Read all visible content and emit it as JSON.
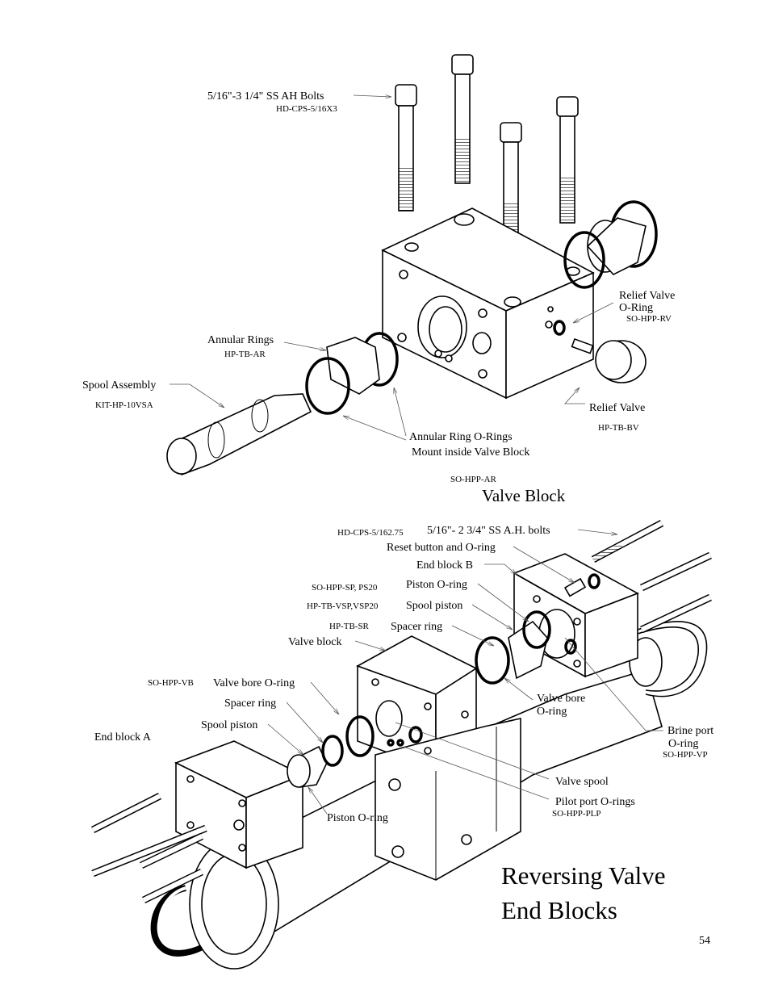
{
  "top_diagram": {
    "bolts_label": "5/16\"-3 1/4\" SS AH Bolts",
    "bolts_part": "HD-CPS-5/16X3",
    "relief_oring_label": [
      "Relief Valve",
      "O-Ring"
    ],
    "relief_oring_part": "SO-HPP-RV",
    "annular_rings_label": "Annular Rings",
    "annular_rings_part": "HP-TB-AR",
    "spool_label": "Spool Assembly",
    "spool_part": "KIT-HP-10VSA",
    "relief_valve_label": "Relief Valve",
    "relief_valve_part": "HP-TB-BV",
    "annular_orings_label": [
      "Annular Ring O-Rings",
      "Mount inside Valve Block"
    ],
    "annular_orings_part": "SO-HPP-AR",
    "caption": "Valve Block"
  },
  "bottom_diagram": {
    "bolts_part": "HD-CPS-5/162.75",
    "bolts_label": "5/16\"- 2 3/4\" SS A.H. bolts",
    "reset_label": "Reset button and O-ring",
    "end_block_b": "End block B",
    "piston_oring_part": "SO-HPP-SP, PS20",
    "piston_oring_label": "Piston O-ring",
    "spool_piston_part": "HP-TB-VSP,VSP20",
    "spool_piston_label": "Spool piston",
    "spacer_ring_part": "HP-TB-SR",
    "spacer_ring_label": "Spacer ring",
    "valve_block_label": "Valve block",
    "valve_bore_part": "SO-HPP-VB",
    "valve_bore_label": "Valve bore O-ring",
    "spacer_ring_label_a": "Spacer ring",
    "spool_piston_label_a": "Spool piston",
    "end_block_a": "End block A",
    "valve_bore_label_b": [
      "Valve bore",
      "O-ring"
    ],
    "brine_port_label": [
      "Brine port",
      "O-ring"
    ],
    "brine_port_part": "SO-HPP-VP",
    "valve_spool_label": "Valve spool",
    "pilot_label": "Pilot port O-rings",
    "pilot_part": "SO-HPP-PLP",
    "piston_oring_label_a": "Piston O-ring"
  },
  "title": [
    "Reversing Valve",
    "End Blocks"
  ],
  "page_number": "54"
}
